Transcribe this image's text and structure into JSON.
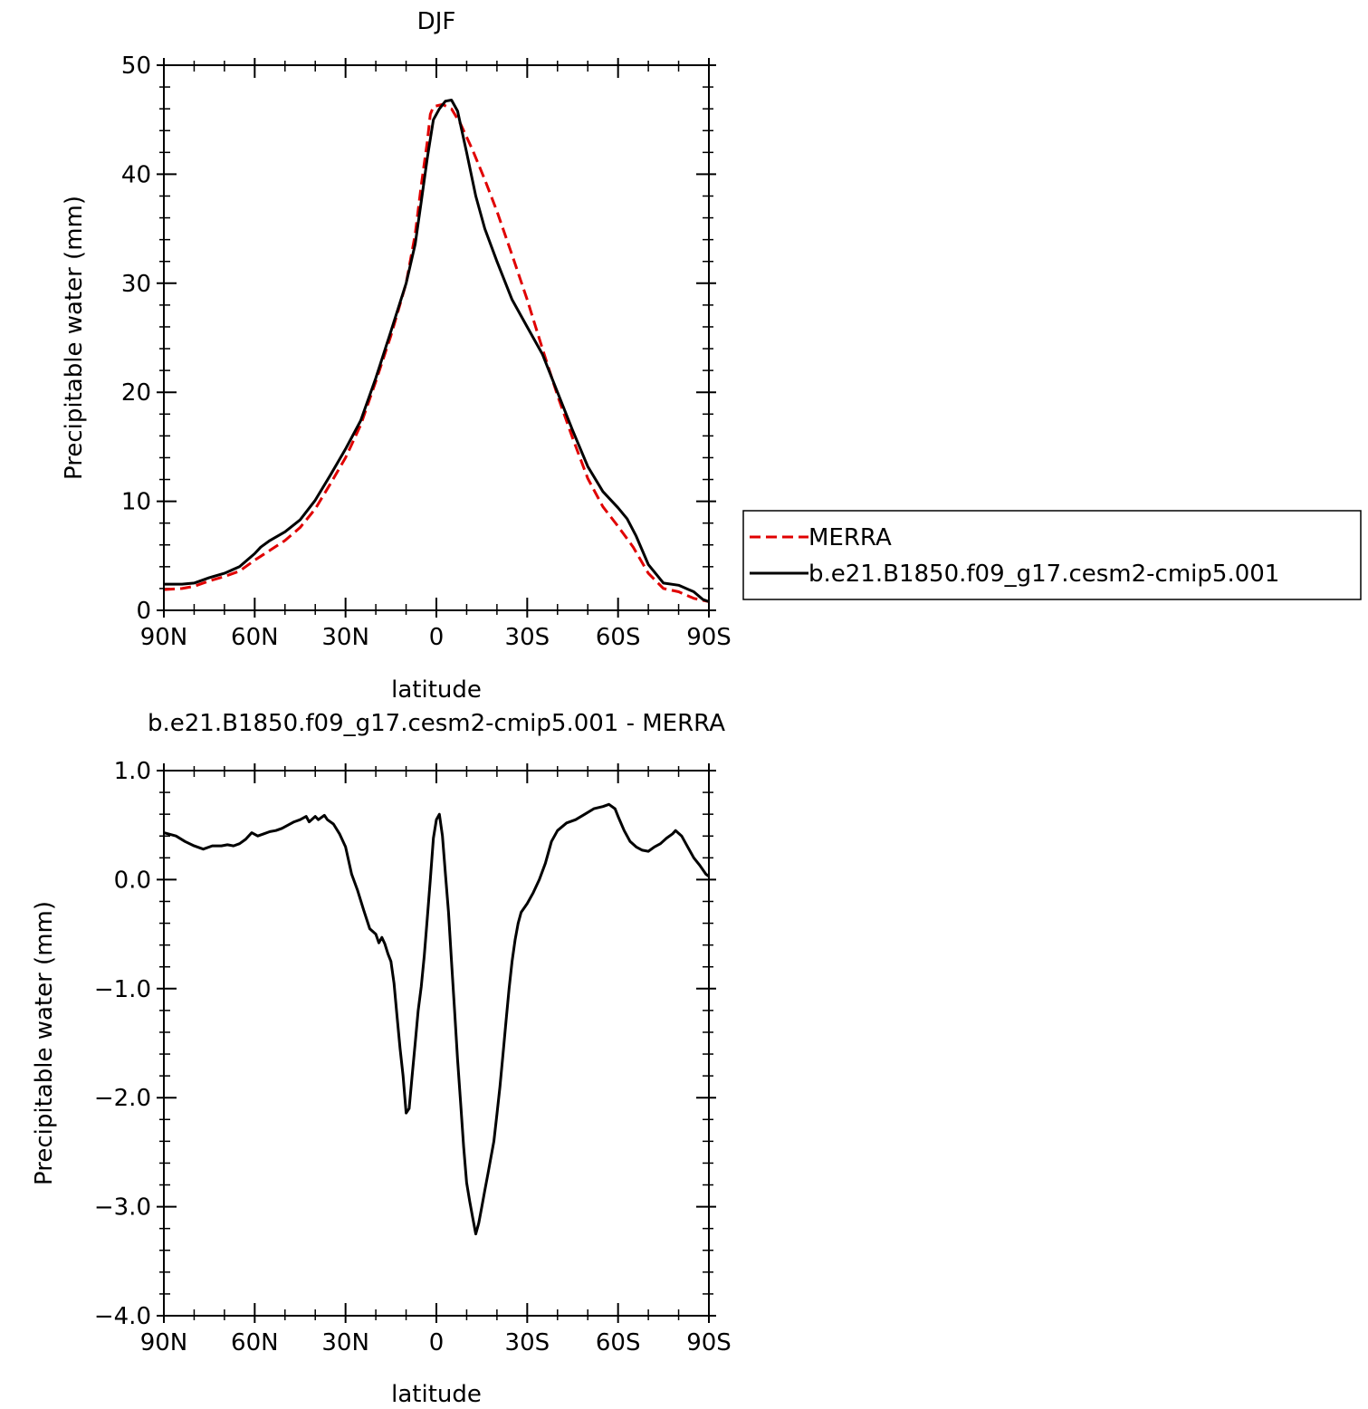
{
  "chart_data": [
    {
      "type": "line",
      "title": "DJF",
      "xlabel": "latitude",
      "ylabel": "Precipitable water (mm)",
      "xlim": [
        90,
        -90
      ],
      "ylim": [
        0,
        50
      ],
      "x_tick_values": [
        90,
        60,
        30,
        0,
        -30,
        -60,
        -90
      ],
      "x_tick_labels": [
        "90N",
        "60N",
        "30N",
        "0",
        "30S",
        "60S",
        "90S"
      ],
      "y_tick_values": [
        0,
        10,
        20,
        30,
        40,
        50
      ],
      "y_tick_labels": [
        "0",
        "10",
        "20",
        "30",
        "40",
        "50"
      ],
      "legend": "right, outside plot",
      "series": [
        {
          "name": "MERRA",
          "color": "#e00000",
          "dash": "dashed",
          "points": [
            [
              90,
              1.9
            ],
            [
              84,
              2.0
            ],
            [
              80,
              2.2
            ],
            [
              75,
              2.7
            ],
            [
              70,
              3.1
            ],
            [
              65,
              3.6
            ],
            [
              60,
              4.6
            ],
            [
              55,
              5.5
            ],
            [
              50,
              6.4
            ],
            [
              45,
              7.6
            ],
            [
              40,
              9.3
            ],
            [
              35,
              11.6
            ],
            [
              30,
              14.0
            ],
            [
              25,
              17.0
            ],
            [
              20,
              21.0
            ],
            [
              15,
              25.2
            ],
            [
              10,
              30.0
            ],
            [
              7,
              34.5
            ],
            [
              5,
              39.0
            ],
            [
              3,
              43.0
            ],
            [
              2,
              45.5
            ],
            [
              1,
              46.2
            ],
            [
              -2,
              46.4
            ],
            [
              -5,
              46.0
            ],
            [
              -8,
              44.6
            ],
            [
              -12,
              42.2
            ],
            [
              -16,
              39.5
            ],
            [
              -20,
              36.6
            ],
            [
              -25,
              32.6
            ],
            [
              -30,
              28.5
            ],
            [
              -35,
              24.0
            ],
            [
              -40,
              19.7
            ],
            [
              -45,
              15.8
            ],
            [
              -50,
              12.1
            ],
            [
              -55,
              9.5
            ],
            [
              -60,
              7.7
            ],
            [
              -65,
              5.8
            ],
            [
              -70,
              3.4
            ],
            [
              -75,
              2.0
            ],
            [
              -80,
              1.7
            ],
            [
              -85,
              1.1
            ],
            [
              -90,
              0.8
            ]
          ]
        },
        {
          "name": "b.e21.B1850.f09_g17.cesm2-cmip5.001",
          "color": "#000000",
          "dash": "solid",
          "points": [
            [
              90,
              2.4
            ],
            [
              84,
              2.4
            ],
            [
              80,
              2.5
            ],
            [
              75,
              3.0
            ],
            [
              70,
              3.4
            ],
            [
              65,
              4.0
            ],
            [
              60,
              5.2
            ],
            [
              58,
              5.8
            ],
            [
              55,
              6.4
            ],
            [
              50,
              7.2
            ],
            [
              45,
              8.3
            ],
            [
              40,
              10.1
            ],
            [
              35,
              12.4
            ],
            [
              30,
              14.8
            ],
            [
              25,
              17.4
            ],
            [
              20,
              21.3
            ],
            [
              15,
              25.6
            ],
            [
              10,
              30.0
            ],
            [
              7,
              33.6
            ],
            [
              5,
              37.5
            ],
            [
              3,
              41.5
            ],
            [
              1,
              45.0
            ],
            [
              -1,
              46.0
            ],
            [
              -3,
              46.7
            ],
            [
              -5,
              46.8
            ],
            [
              -7,
              45.8
            ],
            [
              -10,
              42.0
            ],
            [
              -13,
              38.0
            ],
            [
              -16,
              35.0
            ],
            [
              -20,
              32.0
            ],
            [
              -25,
              28.5
            ],
            [
              -30,
              26.0
            ],
            [
              -35,
              23.5
            ],
            [
              -40,
              20.0
            ],
            [
              -45,
              16.5
            ],
            [
              -50,
              13.2
            ],
            [
              -55,
              10.9
            ],
            [
              -60,
              9.4
            ],
            [
              -63,
              8.4
            ],
            [
              -66,
              6.8
            ],
            [
              -70,
              4.2
            ],
            [
              -75,
              2.5
            ],
            [
              -80,
              2.3
            ],
            [
              -85,
              1.7
            ],
            [
              -88,
              1.0
            ],
            [
              -90,
              0.8
            ]
          ]
        }
      ]
    },
    {
      "type": "line",
      "title": "b.e21.B1850.f09_g17.cesm2-cmip5.001 - MERRA",
      "xlabel": "latitude",
      "ylabel": "Precipitable water (mm)",
      "xlim": [
        90,
        -90
      ],
      "ylim": [
        -4.0,
        1.0
      ],
      "x_tick_values": [
        90,
        60,
        30,
        0,
        -30,
        -60,
        -90
      ],
      "x_tick_labels": [
        "90N",
        "60N",
        "30N",
        "0",
        "30S",
        "60S",
        "90S"
      ],
      "y_tick_values": [
        1.0,
        0.0,
        -1.0,
        -2.0,
        -3.0,
        -4.0
      ],
      "y_tick_labels": [
        "1.0",
        "0.0",
        "−1.0",
        "−2.0",
        "−3.0",
        "−4.0"
      ],
      "series": [
        {
          "color": "#000000",
          "points": [
            [
              90,
              0.43
            ],
            [
              86,
              0.4
            ],
            [
              83,
              0.35
            ],
            [
              80,
              0.31
            ],
            [
              77,
              0.28
            ],
            [
              74,
              0.31
            ],
            [
              71,
              0.31
            ],
            [
              69,
              0.32
            ],
            [
              67,
              0.31
            ],
            [
              65,
              0.33
            ],
            [
              63,
              0.37
            ],
            [
              61,
              0.43
            ],
            [
              59,
              0.4
            ],
            [
              57,
              0.42
            ],
            [
              55,
              0.44
            ],
            [
              53,
              0.45
            ],
            [
              51,
              0.47
            ],
            [
              49,
              0.5
            ],
            [
              47,
              0.53
            ],
            [
              45,
              0.55
            ],
            [
              43,
              0.58
            ],
            [
              42,
              0.53
            ],
            [
              40,
              0.58
            ],
            [
              39,
              0.55
            ],
            [
              37,
              0.59
            ],
            [
              36,
              0.55
            ],
            [
              34,
              0.51
            ],
            [
              32,
              0.42
            ],
            [
              30,
              0.3
            ],
            [
              28,
              0.05
            ],
            [
              26,
              -0.1
            ],
            [
              24,
              -0.28
            ],
            [
              22,
              -0.45
            ],
            [
              20,
              -0.5
            ],
            [
              19,
              -0.58
            ],
            [
              18,
              -0.53
            ],
            [
              17,
              -0.59
            ],
            [
              16,
              -0.68
            ],
            [
              15,
              -0.75
            ],
            [
              14,
              -0.95
            ],
            [
              13,
              -1.25
            ],
            [
              12,
              -1.55
            ],
            [
              11,
              -1.8
            ],
            [
              10,
              -2.14
            ],
            [
              9,
              -2.1
            ],
            [
              8,
              -1.8
            ],
            [
              7,
              -1.5
            ],
            [
              6,
              -1.2
            ],
            [
              5,
              -0.98
            ],
            [
              4,
              -0.7
            ],
            [
              3,
              -0.35
            ],
            [
              2,
              0.0
            ],
            [
              1,
              0.38
            ],
            [
              0,
              0.55
            ],
            [
              -1,
              0.6
            ],
            [
              -2,
              0.4
            ],
            [
              -3,
              0.05
            ],
            [
              -4,
              -0.3
            ],
            [
              -5,
              -0.75
            ],
            [
              -6,
              -1.2
            ],
            [
              -7,
              -1.65
            ],
            [
              -8,
              -2.05
            ],
            [
              -9,
              -2.45
            ],
            [
              -10,
              -2.78
            ],
            [
              -11,
              -2.95
            ],
            [
              -12,
              -3.1
            ],
            [
              -13,
              -3.25
            ],
            [
              -14,
              -3.15
            ],
            [
              -15,
              -3.0
            ],
            [
              -16,
              -2.85
            ],
            [
              -17,
              -2.7
            ],
            [
              -18,
              -2.55
            ],
            [
              -19,
              -2.4
            ],
            [
              -20,
              -2.15
            ],
            [
              -21,
              -1.9
            ],
            [
              -22,
              -1.6
            ],
            [
              -23,
              -1.3
            ],
            [
              -24,
              -1.0
            ],
            [
              -25,
              -0.75
            ],
            [
              -26,
              -0.55
            ],
            [
              -27,
              -0.4
            ],
            [
              -28,
              -0.3
            ],
            [
              -30,
              -0.22
            ],
            [
              -32,
              -0.12
            ],
            [
              -34,
              0.0
            ],
            [
              -36,
              0.15
            ],
            [
              -38,
              0.35
            ],
            [
              -40,
              0.45
            ],
            [
              -43,
              0.52
            ],
            [
              -46,
              0.55
            ],
            [
              -49,
              0.6
            ],
            [
              -52,
              0.65
            ],
            [
              -55,
              0.67
            ],
            [
              -57,
              0.69
            ],
            [
              -59,
              0.65
            ],
            [
              -60,
              0.58
            ],
            [
              -62,
              0.45
            ],
            [
              -64,
              0.35
            ],
            [
              -66,
              0.3
            ],
            [
              -68,
              0.27
            ],
            [
              -70,
              0.26
            ],
            [
              -72,
              0.3
            ],
            [
              -74,
              0.33
            ],
            [
              -76,
              0.38
            ],
            [
              -78,
              0.42
            ],
            [
              -79,
              0.45
            ],
            [
              -81,
              0.4
            ],
            [
              -83,
              0.3
            ],
            [
              -85,
              0.2
            ],
            [
              -87,
              0.13
            ],
            [
              -89,
              0.05
            ],
            [
              -90,
              0.03
            ]
          ]
        }
      ]
    }
  ],
  "legend_items": [
    {
      "label": "MERRA",
      "color": "#e00000",
      "dash": "dashed"
    },
    {
      "label": "b.e21.B1850.f09_g17.cesm2-cmip5.001",
      "color": "#000000",
      "dash": "solid"
    }
  ]
}
